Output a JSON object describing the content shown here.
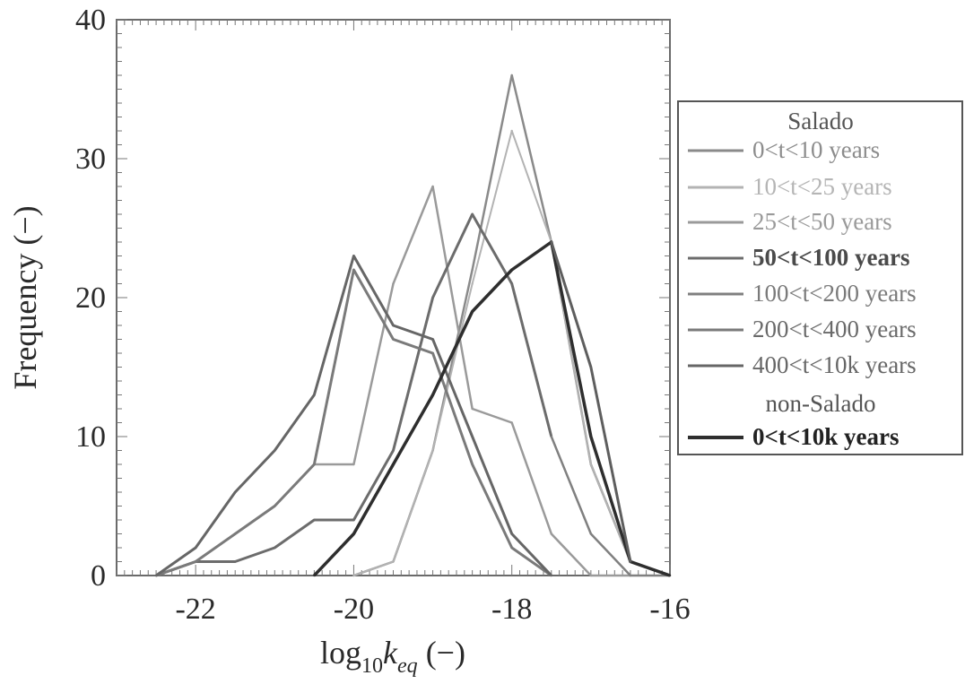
{
  "chart_data": {
    "type": "line",
    "xlabel": "log10keq (−)",
    "ylabel": "Frequency (−)",
    "xlim": [
      -23,
      -16
    ],
    "ylim": [
      0,
      40
    ],
    "x_ticks": [
      "-22",
      "-20",
      "-18",
      "-16"
    ],
    "y_ticks": [
      "0",
      "10",
      "20",
      "30",
      "40"
    ],
    "legend_position": "right",
    "legend_groups": [
      "Salado",
      "non-Salado"
    ],
    "series": [
      {
        "name": "0<t<10 years",
        "group": "Salado",
        "color": "#8a8a8a",
        "width": 2.5,
        "x": [
          -20,
          -19.5,
          -19,
          -18.5,
          -18,
          -17.5,
          -17,
          -16.5,
          -16
        ],
        "y": [
          0,
          1,
          9,
          22,
          36,
          24,
          8,
          1,
          0
        ]
      },
      {
        "name": "10<t<25 years",
        "group": "Salado",
        "color": "#b3b3b3",
        "width": 2,
        "x": [
          -20,
          -19.5,
          -19,
          -18.5,
          -18,
          -17.5,
          -17,
          -16.5,
          -16
        ],
        "y": [
          0,
          1,
          9,
          21,
          32,
          24,
          8,
          1,
          0
        ]
      },
      {
        "name": "25<t<50 years",
        "group": "Salado",
        "color": "#9a9a9a",
        "width": 2.5,
        "x": [
          -22.5,
          -22,
          -21.5,
          -21,
          -20.5,
          -20,
          -19.5,
          -19,
          -18.5,
          -18,
          -17.5,
          -17,
          -16.5
        ],
        "y": [
          0,
          1,
          3,
          5,
          8,
          8,
          21,
          28,
          12,
          11,
          3,
          0,
          0
        ]
      },
      {
        "name": "50<t<100 years",
        "group": "Salado",
        "color": "#6c6c6c",
        "width": 3,
        "x": [
          -22.5,
          -22,
          -21.5,
          -21,
          -20.5,
          -20,
          -19.5,
          -19,
          -18.5,
          -18,
          -17.5
        ],
        "y": [
          0,
          1,
          1,
          2,
          4,
          4,
          9,
          20,
          26,
          21,
          10
        ]
      },
      {
        "name": "100<t<200 years",
        "group": "Salado",
        "color": "#808080",
        "width": 2.5,
        "x": [
          -17.5,
          -17,
          -16.5,
          -16
        ],
        "y": [
          10,
          3,
          0,
          0
        ]
      },
      {
        "name": "200<t<400 years",
        "group": "Salado",
        "color": "#7a7a7a",
        "width": 3,
        "x": [
          -22.5,
          -22,
          -21.5,
          -21,
          -20.5,
          -20,
          -19.5,
          -19,
          -18.5,
          -18,
          -17.5
        ],
        "y": [
          0,
          1,
          3,
          5,
          8,
          22,
          17,
          16,
          8,
          2,
          0
        ]
      },
      {
        "name": "400<t<10k years",
        "group": "Salado",
        "color": "#666666",
        "width": 3,
        "x": [
          -22.5,
          -22,
          -21.5,
          -21,
          -20.5,
          -20,
          -19.5,
          -19,
          -18.5,
          -18,
          -17.5
        ],
        "y": [
          0,
          2,
          6,
          9,
          13,
          23,
          18,
          17,
          10,
          3,
          0
        ]
      },
      {
        "name": "0<t<10k years",
        "group": "non-Salado",
        "color": "#2e2e2e",
        "width": 3.5,
        "x": [
          -20.5,
          -20,
          -19.5,
          -19,
          -18.5,
          -18,
          -17.5,
          -17,
          -16.5,
          -16
        ],
        "y": [
          0,
          3,
          8,
          13,
          19,
          22,
          24,
          10,
          1,
          0
        ]
      },
      {
        "name": "",
        "group": "Salado",
        "color": "#5e5e5e",
        "width": 3,
        "x": [
          -17.5,
          -17,
          -16.5
        ],
        "y": [
          24,
          15,
          1
        ]
      }
    ]
  },
  "legend": {
    "headers": {
      "salado": "Salado",
      "non_salado": "non-Salado"
    },
    "items": [
      {
        "label": "0<t<10 years",
        "color": "#8a8a8a",
        "text_color": "#8c8c8c",
        "bold": false
      },
      {
        "label": "10<t<25 years",
        "color": "#b3b3b3",
        "text_color": "#b5b5b5",
        "bold": false
      },
      {
        "label": "25<t<50 years",
        "color": "#9a9a9a",
        "text_color": "#9a9a9a",
        "bold": false
      },
      {
        "label": "50<t<100 years",
        "color": "#6c6c6c",
        "text_color": "#4a4a4a",
        "bold": true
      },
      {
        "label": "100<t<200 years",
        "color": "#808080",
        "text_color": "#7a7a7a",
        "bold": false
      },
      {
        "label": "200<t<400 years",
        "color": "#7a7a7a",
        "text_color": "#6a6a6a",
        "bold": false
      },
      {
        "label": "400<t<10k years",
        "color": "#666666",
        "text_color": "#666666",
        "bold": false
      },
      {
        "label": "0<t<10k years",
        "color": "#2e2e2e",
        "text_color": "#222222",
        "bold": true
      }
    ]
  }
}
